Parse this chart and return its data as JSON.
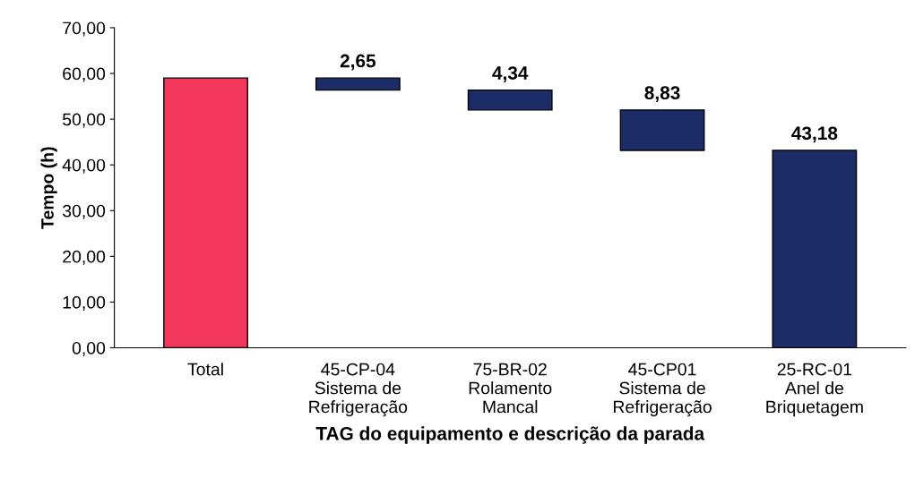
{
  "chart_data": {
    "type": "bar",
    "xlabel": "TAG do equipamento e descrição da parada",
    "ylabel": "Tempo (h)",
    "categories": [
      "Total",
      "45-CP-04\nSistema de\nRefrigeração",
      "75-BR-02\nRolamento\nMancal",
      "45-CP01\nSistema de\nRefrigeração",
      "25-RC-01\nAnel de\nBriquetagem"
    ],
    "values": [
      59.0,
      2.65,
      4.34,
      8.83,
      43.18
    ],
    "base": [
      0,
      56.35,
      52.01,
      43.18,
      0
    ],
    "colors": [
      "#f2365c",
      "#1c2c66",
      "#1c2c66",
      "#1c2c66",
      "#1c2c66"
    ],
    "value_labels": [
      null,
      "2,65",
      "4,34",
      "8,83",
      "43,18"
    ],
    "ylim": [
      0,
      70
    ],
    "yticks": [
      {
        "value": 0,
        "label": "0,00"
      },
      {
        "value": 10,
        "label": "10,00"
      },
      {
        "value": 20,
        "label": "20,00"
      },
      {
        "value": 30,
        "label": "30,00"
      },
      {
        "value": 40,
        "label": "40,00"
      },
      {
        "value": 50,
        "label": "50,00"
      },
      {
        "value": 60,
        "label": "60,00"
      },
      {
        "value": 70,
        "label": "70,00"
      }
    ]
  }
}
